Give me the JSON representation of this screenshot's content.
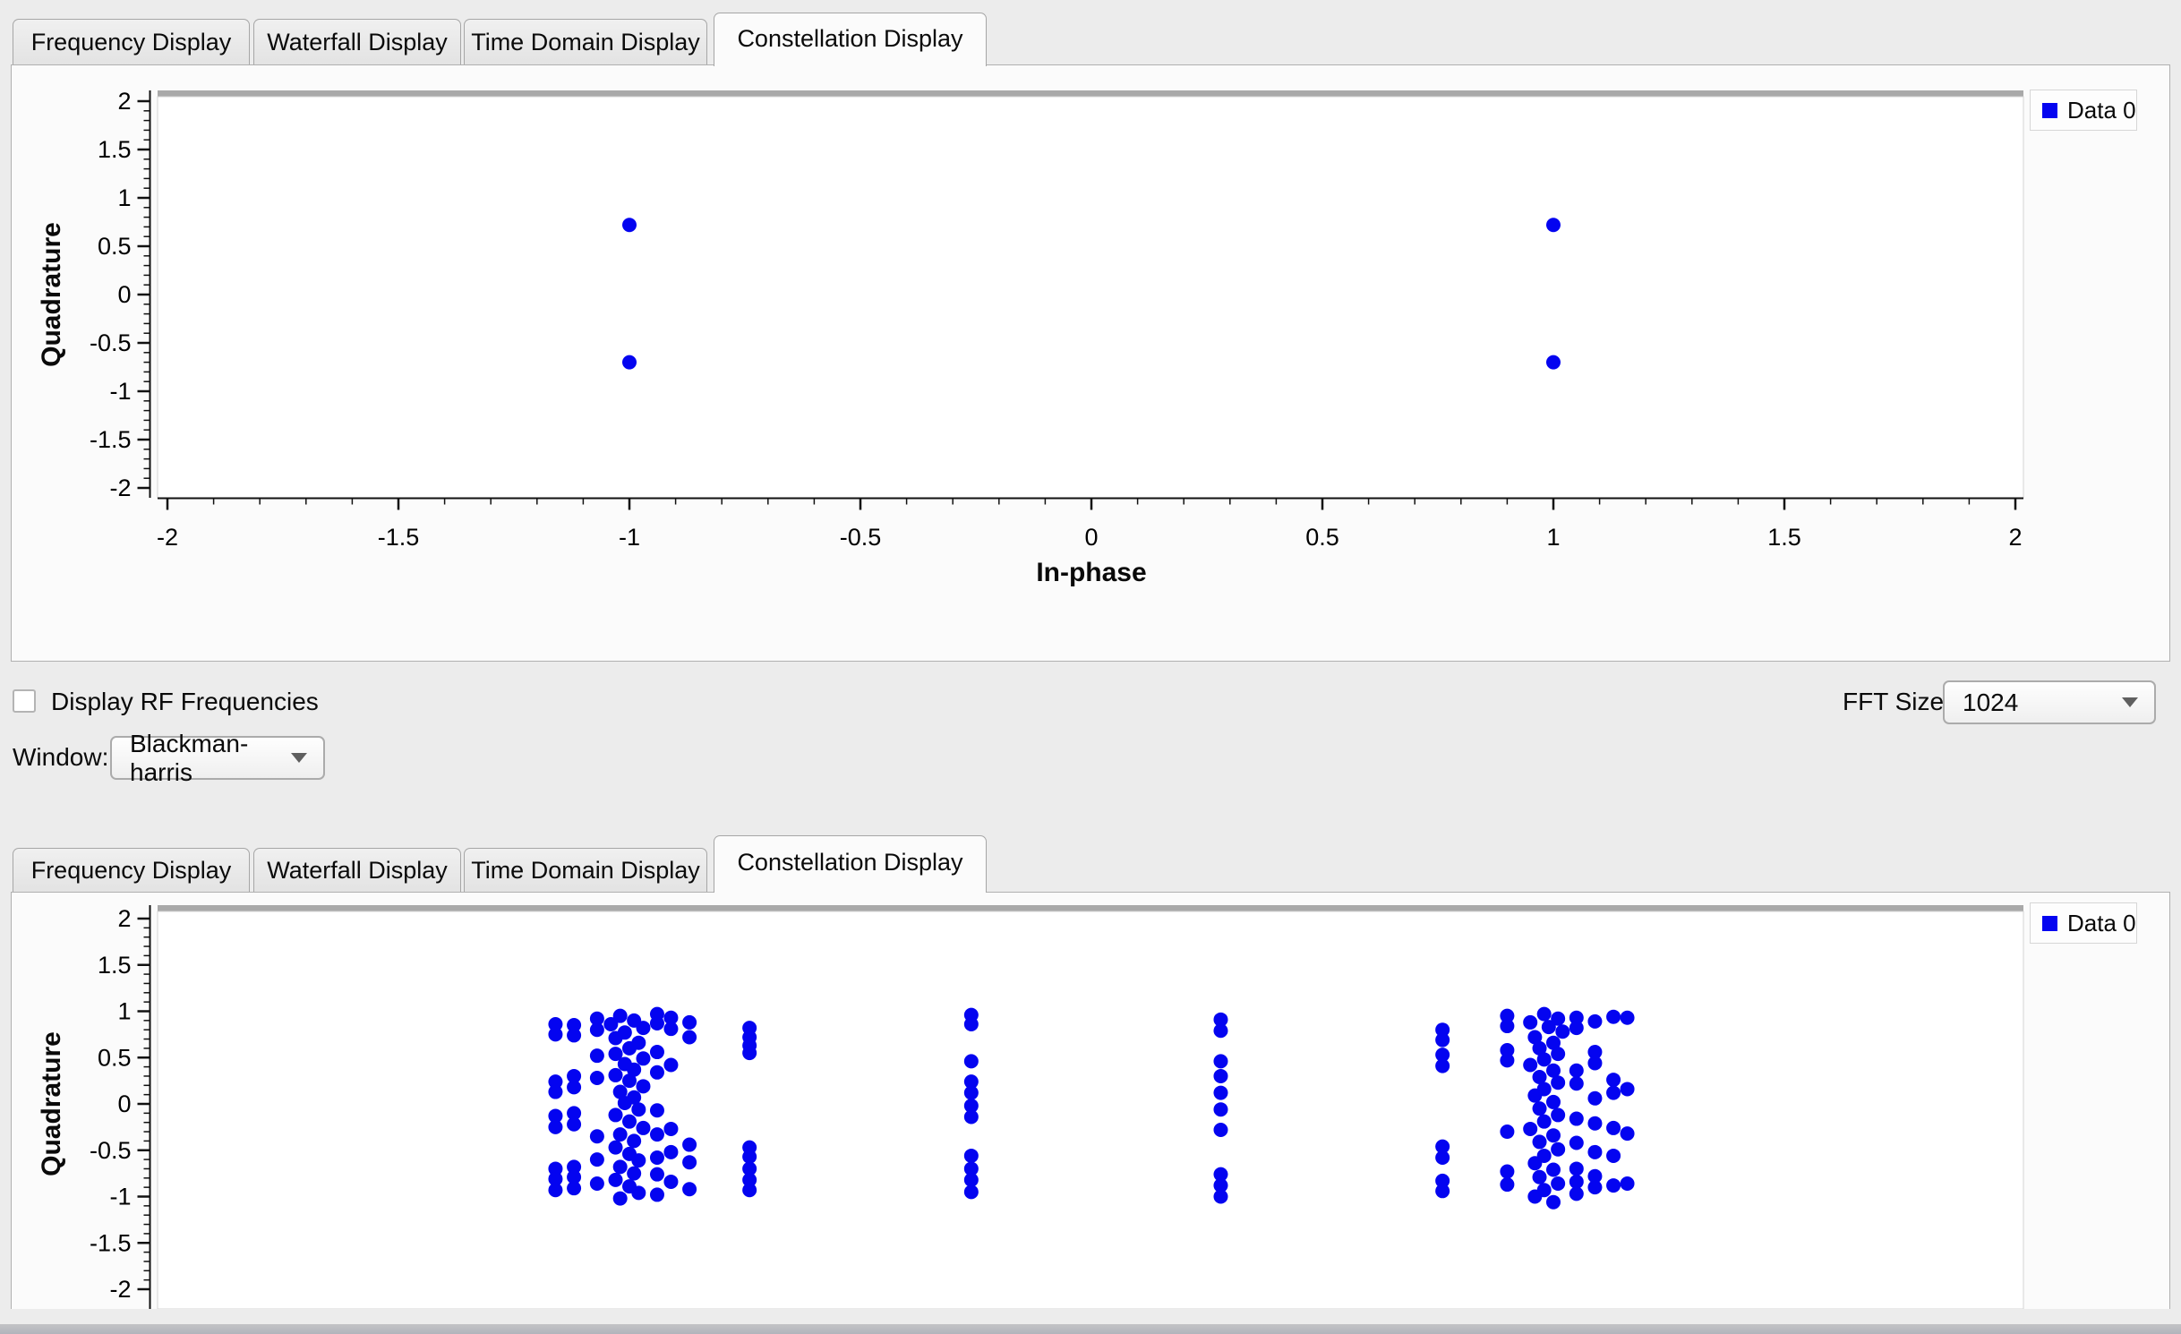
{
  "window": {
    "background": "#ececec",
    "accent_blue": "#0404f0"
  },
  "panels": [
    {
      "tabs": [
        {
          "label": "Frequency Display",
          "selected": false
        },
        {
          "label": "Waterfall Display",
          "selected": false
        },
        {
          "label": "Time Domain Display",
          "selected": false
        },
        {
          "label": "Constellation Display",
          "selected": true
        }
      ],
      "legend": {
        "label": "Data 0",
        "color": "#0404f0"
      }
    },
    {
      "tabs": [
        {
          "label": "Frequency Display",
          "selected": false
        },
        {
          "label": "Waterfall Display",
          "selected": false
        },
        {
          "label": "Time Domain Display",
          "selected": false
        },
        {
          "label": "Constellation Display",
          "selected": true
        }
      ],
      "legend": {
        "label": "Data 0",
        "color": "#0404f0"
      }
    }
  ],
  "controls": {
    "display_rf": {
      "label": "Display RF Frequencies",
      "checked": false
    },
    "fft_size": {
      "label": "FFT Size:",
      "value": "1024"
    },
    "window_fn": {
      "label": "Window:",
      "value": "Blackman-harris"
    }
  },
  "chart_data": [
    {
      "type": "scatter",
      "title": "",
      "xlabel": "In-phase",
      "ylabel": "Quadrature",
      "xlim": [
        -2,
        2
      ],
      "ylim": [
        -2,
        2
      ],
      "grid": false,
      "legend": {
        "label": "Data 0",
        "position": "top-right"
      },
      "x_ticks": {
        "values": [
          -2,
          -1.5,
          -1,
          -0.5,
          0,
          0.5,
          1,
          1.5,
          2
        ],
        "labels": [
          "-2",
          "-1.5",
          "-1",
          "-0.5",
          "0",
          "0.5",
          "1",
          "1.5",
          "2"
        ],
        "minor_step": 0.1
      },
      "y_ticks": {
        "values": [
          2,
          1.5,
          1,
          0.5,
          0,
          -0.5,
          -1,
          -1.5,
          -2
        ],
        "labels": [
          "2",
          "1.5",
          "1",
          "0.5",
          "0",
          "-0.5",
          "-1",
          "-1.5",
          "-2"
        ],
        "minor_step": 0.1
      },
      "series": [
        {
          "name": "Data 0",
          "color": "#0404f0",
          "marker_radius": 8,
          "points": [
            [
              -1,
              0.72
            ],
            [
              1,
              0.72
            ],
            [
              -1,
              -0.7
            ],
            [
              1,
              -0.7
            ]
          ]
        }
      ]
    },
    {
      "type": "scatter",
      "title": "",
      "xlabel": "",
      "ylabel": "Quadrature",
      "xlim": [
        -2,
        2
      ],
      "ylim": [
        -2,
        2
      ],
      "grid": false,
      "clipped_bottom": true,
      "legend": {
        "label": "Data 0",
        "position": "top-right"
      },
      "x_ticks": {
        "values": [],
        "labels": [],
        "minor_step": 0.1
      },
      "y_ticks": {
        "values": [
          2,
          1.5,
          1,
          0.5,
          0,
          -0.5,
          -1,
          -1.5,
          -2
        ],
        "labels": [
          "2",
          "1.5",
          "1",
          "0.5",
          "0",
          "-0.5",
          "-1",
          "-1.5",
          "-2"
        ],
        "minor_step": 0.1
      },
      "series": [
        {
          "name": "Data 0",
          "color": "#0404f0",
          "marker_radius": 8,
          "points": [
            [
              -1.02,
              0.95
            ],
            [
              -0.99,
              0.9
            ],
            [
              -1.04,
              0.86
            ],
            [
              -0.97,
              0.82
            ],
            [
              -1.01,
              0.77
            ],
            [
              -1.03,
              0.71
            ],
            [
              -0.98,
              0.66
            ],
            [
              -1.0,
              0.6
            ],
            [
              -1.03,
              0.54
            ],
            [
              -0.97,
              0.49
            ],
            [
              -1.01,
              0.43
            ],
            [
              -0.99,
              0.37
            ],
            [
              -1.03,
              0.31
            ],
            [
              -1.0,
              0.25
            ],
            [
              -0.97,
              0.19
            ],
            [
              -1.02,
              0.13
            ],
            [
              -0.99,
              0.07
            ],
            [
              -1.01,
              0.01
            ],
            [
              -0.98,
              -0.06
            ],
            [
              -1.03,
              -0.12
            ],
            [
              -1.0,
              -0.19
            ],
            [
              -0.97,
              -0.26
            ],
            [
              -1.02,
              -0.33
            ],
            [
              -0.99,
              -0.4
            ],
            [
              -1.03,
              -0.47
            ],
            [
              -1.0,
              -0.54
            ],
            [
              -0.98,
              -0.61
            ],
            [
              -1.02,
              -0.68
            ],
            [
              -0.99,
              -0.75
            ],
            [
              -1.03,
              -0.82
            ],
            [
              -1.0,
              -0.89
            ],
            [
              -0.98,
              -0.96
            ],
            [
              -1.02,
              -1.02
            ],
            [
              -1.16,
              0.86
            ],
            [
              -1.16,
              0.75
            ],
            [
              -1.16,
              0.24
            ],
            [
              -1.16,
              0.13
            ],
            [
              -1.16,
              -0.13
            ],
            [
              -1.16,
              -0.25
            ],
            [
              -1.16,
              -0.7
            ],
            [
              -1.16,
              -0.81
            ],
            [
              -1.16,
              -0.93
            ],
            [
              -1.12,
              0.85
            ],
            [
              -1.12,
              0.74
            ],
            [
              -1.12,
              0.3
            ],
            [
              -1.12,
              0.18
            ],
            [
              -1.12,
              -0.1
            ],
            [
              -1.12,
              -0.22
            ],
            [
              -1.12,
              -0.68
            ],
            [
              -1.12,
              -0.79
            ],
            [
              -1.12,
              -0.91
            ],
            [
              -1.07,
              0.92
            ],
            [
              -1.07,
              0.8
            ],
            [
              -1.07,
              0.52
            ],
            [
              -1.07,
              0.28
            ],
            [
              -1.07,
              -0.35
            ],
            [
              -1.07,
              -0.6
            ],
            [
              -1.07,
              -0.86
            ],
            [
              -0.94,
              0.97
            ],
            [
              -0.94,
              0.87
            ],
            [
              -0.94,
              0.56
            ],
            [
              -0.94,
              0.34
            ],
            [
              -0.94,
              -0.07
            ],
            [
              -0.94,
              -0.33
            ],
            [
              -0.94,
              -0.58
            ],
            [
              -0.94,
              -0.76
            ],
            [
              -0.94,
              -0.98
            ],
            [
              -0.91,
              0.93
            ],
            [
              -0.91,
              0.81
            ],
            [
              -0.91,
              0.42
            ],
            [
              -0.91,
              -0.27
            ],
            [
              -0.91,
              -0.52
            ],
            [
              -0.91,
              -0.84
            ],
            [
              -0.87,
              0.88
            ],
            [
              -0.87,
              0.72
            ],
            [
              -0.87,
              -0.44
            ],
            [
              -0.87,
              -0.63
            ],
            [
              -0.87,
              -0.92
            ],
            [
              -0.74,
              0.82
            ],
            [
              -0.74,
              0.72
            ],
            [
              -0.74,
              0.63
            ],
            [
              -0.74,
              0.55
            ],
            [
              -0.74,
              -0.47
            ],
            [
              -0.74,
              -0.57
            ],
            [
              -0.74,
              -0.7
            ],
            [
              -0.74,
              -0.82
            ],
            [
              -0.74,
              -0.93
            ],
            [
              -0.26,
              0.96
            ],
            [
              -0.26,
              0.86
            ],
            [
              -0.26,
              0.46
            ],
            [
              -0.26,
              0.24
            ],
            [
              -0.26,
              0.12
            ],
            [
              -0.26,
              -0.02
            ],
            [
              -0.26,
              -0.14
            ],
            [
              -0.26,
              -0.56
            ],
            [
              -0.26,
              -0.7
            ],
            [
              -0.26,
              -0.82
            ],
            [
              -0.26,
              -0.95
            ],
            [
              0.28,
              0.91
            ],
            [
              0.28,
              0.79
            ],
            [
              0.28,
              0.46
            ],
            [
              0.28,
              0.3
            ],
            [
              0.28,
              0.12
            ],
            [
              0.28,
              -0.06
            ],
            [
              0.28,
              -0.28
            ],
            [
              0.28,
              -0.76
            ],
            [
              0.28,
              -0.88
            ],
            [
              0.28,
              -1.0
            ],
            [
              0.76,
              0.8
            ],
            [
              0.76,
              0.69
            ],
            [
              0.76,
              0.53
            ],
            [
              0.76,
              0.41
            ],
            [
              0.76,
              -0.46
            ],
            [
              0.76,
              -0.58
            ],
            [
              0.76,
              -0.83
            ],
            [
              0.76,
              -0.94
            ],
            [
              0.98,
              0.97
            ],
            [
              1.01,
              0.92
            ],
            [
              0.95,
              0.88
            ],
            [
              0.99,
              0.83
            ],
            [
              1.02,
              0.78
            ],
            [
              0.96,
              0.72
            ],
            [
              1.0,
              0.66
            ],
            [
              0.97,
              0.6
            ],
            [
              1.01,
              0.54
            ],
            [
              0.98,
              0.48
            ],
            [
              0.95,
              0.42
            ],
            [
              1.0,
              0.36
            ],
            [
              0.97,
              0.29
            ],
            [
              1.01,
              0.23
            ],
            [
              0.98,
              0.16
            ],
            [
              0.96,
              0.09
            ],
            [
              1.0,
              0.02
            ],
            [
              0.97,
              -0.05
            ],
            [
              1.01,
              -0.12
            ],
            [
              0.98,
              -0.19
            ],
            [
              0.95,
              -0.27
            ],
            [
              1.0,
              -0.34
            ],
            [
              0.97,
              -0.41
            ],
            [
              1.01,
              -0.49
            ],
            [
              0.98,
              -0.56
            ],
            [
              0.96,
              -0.64
            ],
            [
              1.0,
              -0.71
            ],
            [
              0.97,
              -0.79
            ],
            [
              1.01,
              -0.86
            ],
            [
              0.98,
              -0.93
            ],
            [
              0.96,
              -1.0
            ],
            [
              1.0,
              -1.06
            ],
            [
              0.9,
              0.95
            ],
            [
              0.9,
              0.84
            ],
            [
              0.9,
              0.58
            ],
            [
              0.9,
              0.47
            ],
            [
              0.9,
              -0.3
            ],
            [
              0.9,
              -0.73
            ],
            [
              0.9,
              -0.87
            ],
            [
              1.05,
              0.93
            ],
            [
              1.05,
              0.82
            ],
            [
              1.05,
              0.36
            ],
            [
              1.05,
              0.22
            ],
            [
              1.05,
              -0.16
            ],
            [
              1.05,
              -0.42
            ],
            [
              1.05,
              -0.7
            ],
            [
              1.05,
              -0.84
            ],
            [
              1.05,
              -0.97
            ],
            [
              1.09,
              0.89
            ],
            [
              1.09,
              0.56
            ],
            [
              1.09,
              0.44
            ],
            [
              1.09,
              0.06
            ],
            [
              1.09,
              -0.21
            ],
            [
              1.09,
              -0.52
            ],
            [
              1.09,
              -0.78
            ],
            [
              1.09,
              -0.9
            ],
            [
              1.13,
              0.94
            ],
            [
              1.13,
              0.26
            ],
            [
              1.13,
              0.12
            ],
            [
              1.13,
              -0.26
            ],
            [
              1.13,
              -0.56
            ],
            [
              1.13,
              -0.88
            ],
            [
              1.16,
              0.93
            ],
            [
              1.16,
              0.16
            ],
            [
              1.16,
              -0.32
            ],
            [
              1.16,
              -0.86
            ]
          ]
        }
      ]
    }
  ]
}
